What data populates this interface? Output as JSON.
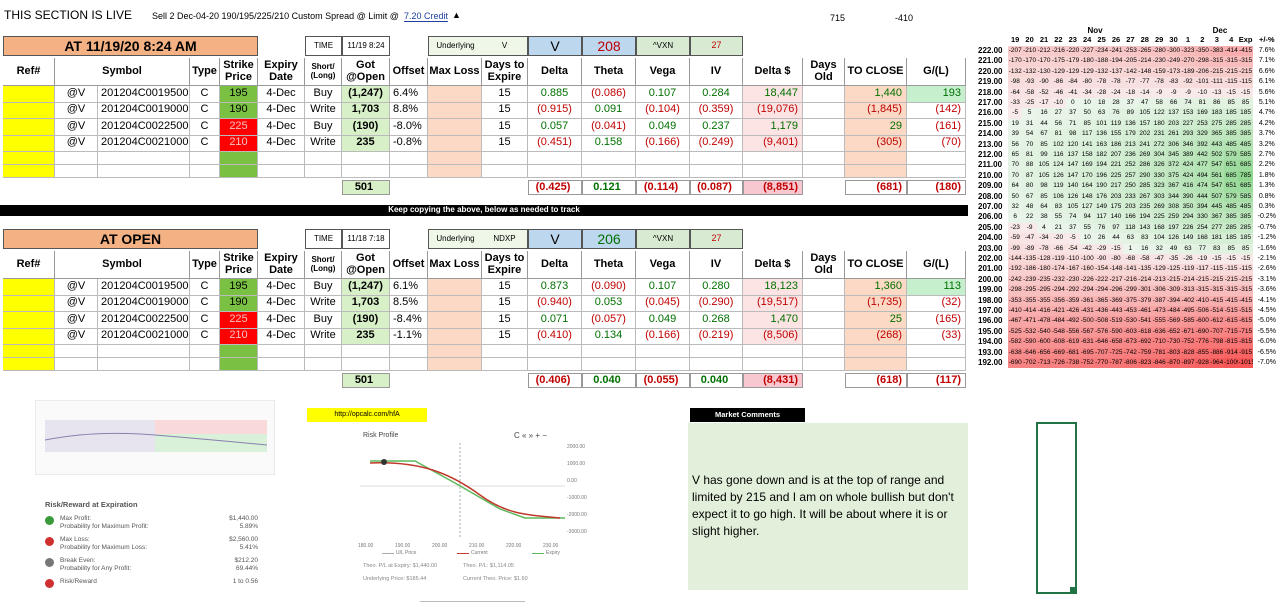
{
  "header": {
    "status": "THIS SECTION IS LIVE",
    "order": "Sell 2 Dec-04-20 190/195/225/210 Custom Spread @ Limit @",
    "credit": "7.20 Credit",
    "value_a": "715",
    "value_b": "-410"
  },
  "banner": "Keep copying the above,  below as needed to track",
  "columns": [
    "Ref#",
    "Symbol",
    "Type",
    "Strike Price",
    "Expiry Date",
    "Short/ (Long)",
    "Got @Open",
    "Offset",
    "Max Loss",
    "Days to Expire",
    "Delta",
    "Theta",
    "Vega",
    "IV",
    "Delta $",
    "Days Old",
    "TO CLOSE",
    "G/(L)"
  ],
  "sections": [
    {
      "title": "AT 11/19/20 8:24 AM",
      "time_label": "TIME",
      "time": "11/19 8:24",
      "underlying_label": "Underlying",
      "underlying": "V",
      "ticker": "V",
      "price": "208",
      "vxn_label": "^VXN",
      "vxn": "27",
      "rows": [
        [
          null,
          "@V",
          "201204C00195000",
          "C",
          "195",
          "4-Dec",
          "Buy",
          "(1,247)",
          "6.4%",
          null,
          "15",
          "0.885",
          "(0.086)",
          "0.107",
          "0.284",
          "18,447",
          null,
          "1,440",
          "193"
        ],
        [
          null,
          "@V",
          "201204C00190000",
          "C",
          "190",
          "4-Dec",
          "Write",
          "1,703",
          "8.8%",
          null,
          "15",
          "(0.915)",
          "0.091",
          "(0.104)",
          "(0.359)",
          "(19,076)",
          null,
          "(1,845)",
          "(142)"
        ],
        [
          null,
          "@V",
          "201204C00225000",
          "C",
          "225",
          "4-Dec",
          "Buy",
          "(190)",
          "-8.0%",
          null,
          "15",
          "0.057",
          "(0.041)",
          "0.049",
          "0.237",
          "1,179",
          null,
          "29",
          "(161)"
        ],
        [
          null,
          "@V",
          "201204C00210000",
          "C",
          "210",
          "4-Dec",
          "Write",
          "235",
          "-0.8%",
          null,
          "15",
          "(0.451)",
          "0.158",
          "(0.166)",
          "(0.249)",
          "(9,401)",
          null,
          "(305)",
          "(70)"
        ]
      ],
      "totals": [
        null,
        null,
        null,
        null,
        null,
        null,
        null,
        "501",
        null,
        null,
        null,
        "(0.425)",
        "0.121",
        "(0.114)",
        "(0.087)",
        "(8,851)",
        null,
        "(681)",
        "(180)"
      ]
    },
    {
      "title": "AT OPEN",
      "time_label": "TIME",
      "time": "11/18 7:18",
      "underlying_label": "Underlying",
      "underlying": "NDXP",
      "ticker": "V",
      "price": "206",
      "vxn_label": "^VXN",
      "vxn": "27",
      "rows": [
        [
          null,
          "@V",
          "201204C00195000",
          "C",
          "195",
          "4-Dec",
          "Buy",
          "(1,247)",
          "6.1%",
          null,
          "15",
          "0.873",
          "(0.090)",
          "0.107",
          "0.280",
          "18,123",
          null,
          "1,360",
          "113"
        ],
        [
          null,
          "@V",
          "201204C00190000",
          "C",
          "190",
          "4-Dec",
          "Write",
          "1,703",
          "8.5%",
          null,
          "15",
          "(0.940)",
          "0.053",
          "(0.045)",
          "(0.290)",
          "(19,517)",
          null,
          "(1,735)",
          "(32)"
        ],
        [
          null,
          "@V",
          "201204C00225000",
          "C",
          "225",
          "4-Dec",
          "Buy",
          "(190)",
          "-8.4%",
          null,
          "15",
          "0.071",
          "(0.057)",
          "0.049",
          "0.268",
          "1,470",
          null,
          "25",
          "(165)"
        ],
        [
          null,
          "@V",
          "201204C00210000",
          "C",
          "210",
          "4-Dec",
          "Write",
          "235",
          "-1.1%",
          null,
          "15",
          "(0.410)",
          "0.134",
          "(0.166)",
          "(0.219)",
          "(8,506)",
          null,
          "(268)",
          "(33)"
        ]
      ],
      "totals": [
        null,
        null,
        null,
        null,
        null,
        null,
        null,
        "501",
        null,
        null,
        null,
        "(0.406)",
        "0.040",
        "(0.055)",
        "0.040",
        "(8,431)",
        null,
        "(618)",
        "(117)"
      ]
    }
  ],
  "strike_fills": [
    "#7ac143",
    "#7ac143",
    "#ff0000",
    "#ff0000"
  ],
  "heatmap": {
    "months": [
      "Nov",
      "Dec"
    ],
    "days": [
      "19",
      "20",
      "21",
      "22",
      "23",
      "24",
      "25",
      "26",
      "27",
      "28",
      "29",
      "30",
      "1",
      "2",
      "3",
      "4",
      "Exp"
    ],
    "pct_label": "+/-%",
    "rows": [
      {
        "price": "222.00",
        "values": [
          -207,
          -210,
          -212,
          -216,
          -220,
          -227,
          -234,
          -241,
          -253,
          -265,
          -280,
          -300,
          -323,
          -350,
          -383,
          -414,
          -415
        ],
        "pct": "7.6%"
      },
      {
        "price": "221.00",
        "values": [
          -170,
          -170,
          -170,
          -175,
          -179,
          -180,
          -188,
          -194,
          -205,
          -214,
          -230,
          -249,
          -270,
          -298,
          -315,
          -315,
          -315
        ],
        "pct": "7.1%"
      },
      {
        "price": "220.00",
        "values": [
          -132,
          -132,
          -130,
          -129,
          -129,
          -129,
          -132,
          -137,
          -142,
          -148,
          -159,
          -173,
          -189,
          -206,
          -215,
          -215,
          -215
        ],
        "pct": "6.6%"
      },
      {
        "price": "219.00",
        "values": [
          -98,
          -93,
          -90,
          -86,
          -84,
          -80,
          -78,
          -78,
          -77,
          -77,
          -78,
          -83,
          -92,
          -101,
          -111,
          -115,
          -115
        ],
        "pct": "6.1%"
      },
      {
        "price": "218.00",
        "values": [
          -64,
          -58,
          -52,
          -46,
          -41,
          -34,
          -28,
          -24,
          -18,
          -14,
          -9,
          -9,
          -9,
          -10,
          -13,
          -15,
          -15
        ],
        "pct": "5.6%"
      },
      {
        "price": "217.00",
        "values": [
          -33,
          -25,
          -17,
          -10,
          0,
          10,
          18,
          28,
          37,
          47,
          58,
          66,
          74,
          81,
          86,
          85,
          85
        ],
        "pct": "5.1%"
      },
      {
        "price": "216.00",
        "values": [
          -5,
          5,
          16,
          27,
          37,
          50,
          63,
          76,
          89,
          105,
          122,
          137,
          153,
          169,
          183,
          185,
          185
        ],
        "pct": "4.7%"
      },
      {
        "price": "215.00",
        "values": [
          19,
          31,
          44,
          56,
          71,
          85,
          101,
          119,
          136,
          157,
          180,
          203,
          227,
          253,
          275,
          285,
          285
        ],
        "pct": "4.2%"
      },
      {
        "price": "214.00",
        "values": [
          39,
          54,
          67,
          81,
          98,
          117,
          136,
          155,
          179,
          202,
          231,
          261,
          293,
          329,
          365,
          385,
          385
        ],
        "pct": "3.7%"
      },
      {
        "price": "213.00",
        "values": [
          56,
          70,
          85,
          102,
          120,
          141,
          163,
          186,
          213,
          241,
          272,
          306,
          346,
          392,
          443,
          485,
          485
        ],
        "pct": "3.2%"
      },
      {
        "price": "212.00",
        "values": [
          65,
          81,
          99,
          116,
          137,
          158,
          182,
          207,
          236,
          269,
          304,
          345,
          389,
          442,
          502,
          579,
          585
        ],
        "pct": "2.7%"
      },
      {
        "price": "211.00",
        "values": [
          70,
          88,
          105,
          124,
          147,
          169,
          194,
          221,
          252,
          286,
          326,
          372,
          424,
          477,
          547,
          651,
          685
        ],
        "pct": "2.2%"
      },
      {
        "price": "210.00",
        "values": [
          70,
          87,
          105,
          126,
          147,
          170,
          196,
          225,
          257,
          290,
          330,
          375,
          424,
          494,
          561,
          685,
          785
        ],
        "pct": "1.8%"
      },
      {
        "price": "209.00",
        "values": [
          64,
          80,
          98,
          119,
          140,
          164,
          190,
          217,
          250,
          285,
          323,
          367,
          416,
          474,
          547,
          651,
          685
        ],
        "pct": "1.3%"
      },
      {
        "price": "208.00",
        "values": [
          50,
          67,
          85,
          106,
          126,
          148,
          176,
          203,
          233,
          267,
          303,
          344,
          390,
          444,
          507,
          579,
          585
        ],
        "pct": "0.8%"
      },
      {
        "price": "207.00",
        "values": [
          32,
          48,
          64,
          83,
          105,
          127,
          149,
          175,
          203,
          235,
          269,
          308,
          350,
          394,
          445,
          485,
          485
        ],
        "pct": "0.3%"
      },
      {
        "price": "206.00",
        "values": [
          6,
          22,
          38,
          55,
          74,
          94,
          117,
          140,
          166,
          194,
          225,
          259,
          294,
          330,
          367,
          385,
          385
        ],
        "pct": "-0.2%"
      },
      {
        "price": "205.00",
        "values": [
          -23,
          -9,
          4,
          21,
          37,
          55,
          76,
          97,
          118,
          143,
          168,
          197,
          226,
          254,
          277,
          285,
          285
        ],
        "pct": "-0.7%"
      },
      {
        "price": "204.00",
        "values": [
          -59,
          -47,
          -34,
          -20,
          -5,
          10,
          26,
          44,
          63,
          83,
          104,
          126,
          149,
          168,
          181,
          185,
          185
        ],
        "pct": "-1.2%"
      },
      {
        "price": "203.00",
        "values": [
          -99,
          -89,
          -78,
          -66,
          -54,
          -42,
          -29,
          -15,
          1,
          16,
          32,
          49,
          63,
          77,
          83,
          85,
          85
        ],
        "pct": "-1.6%"
      },
      {
        "price": "202.00",
        "values": [
          -144,
          -135,
          -128,
          -119,
          -110,
          -100,
          -90,
          -80,
          -68,
          -58,
          -47,
          -35,
          -26,
          -19,
          -15,
          -15,
          -15
        ],
        "pct": "-2.1%"
      },
      {
        "price": "201.00",
        "values": [
          -192,
          -186,
          -180,
          -174,
          -167,
          -160,
          -154,
          -148,
          -141,
          -135,
          -129,
          -125,
          -119,
          -117,
          -115,
          -115,
          -115
        ],
        "pct": "-2.6%"
      },
      {
        "price": "200.00",
        "values": [
          -242,
          -239,
          -235,
          -232,
          -230,
          -226,
          -222,
          -217,
          -216,
          -214,
          -213,
          -215,
          -214,
          -215,
          -215,
          -215,
          -215
        ],
        "pct": "-3.1%"
      },
      {
        "price": "199.00",
        "values": [
          -298,
          -295,
          -295,
          -294,
          -292,
          -294,
          -294,
          -296,
          -299,
          -301,
          -306,
          -309,
          -313,
          -315,
          -315,
          -315,
          -315
        ],
        "pct": "-3.6%"
      },
      {
        "price": "198.00",
        "values": [
          -353,
          -355,
          -355,
          -356,
          -359,
          -361,
          -365,
          -369,
          -375,
          -379,
          -387,
          -394,
          -402,
          -410,
          -415,
          -415,
          -415
        ],
        "pct": "-4.1%"
      },
      {
        "price": "197.00",
        "values": [
          -410,
          -414,
          -416,
          -421,
          -426,
          -431,
          -436,
          -443,
          -453,
          -461,
          -473,
          -484,
          -495,
          -506,
          -514,
          -515,
          -515
        ],
        "pct": "-4.5%"
      },
      {
        "price": "196.00",
        "values": [
          -467,
          -471,
          -478,
          -484,
          -492,
          -500,
          -508,
          -519,
          -530,
          -541,
          -555,
          -569,
          -585,
          -600,
          -612,
          -615,
          -615
        ],
        "pct": "-5.0%"
      },
      {
        "price": "195.00",
        "values": [
          -525,
          -532,
          -540,
          -548,
          -556,
          -567,
          -576,
          -590,
          -603,
          -618,
          -636,
          -652,
          -671,
          -690,
          -707,
          -715,
          -715
        ],
        "pct": "-5.5%"
      },
      {
        "price": "194.00",
        "values": [
          -582,
          -590,
          -600,
          -608,
          -619,
          -631,
          -646,
          -658,
          -673,
          -692,
          -710,
          -730,
          -752,
          -776,
          -798,
          -815,
          -815
        ],
        "pct": "-6.0%"
      },
      {
        "price": "193.00",
        "values": [
          -638,
          -646,
          -656,
          -669,
          -681,
          -695,
          -707,
          -725,
          -742,
          -759,
          -781,
          -803,
          -828,
          -855,
          -886,
          -914,
          -915
        ],
        "pct": "-6.5%"
      },
      {
        "price": "192.00",
        "values": [
          -690,
          -702,
          -713,
          -726,
          -738,
          -752,
          -770,
          -787,
          -806,
          -823,
          -846,
          -870,
          -897,
          -928,
          -964,
          -1009,
          -1015
        ],
        "pct": "-7.0%"
      }
    ]
  },
  "risk_reward": {
    "title": "Risk/Reward at Expiration",
    "items": [
      {
        "label": "Max Profit:",
        "sub": "Probability for Maximum Profit:",
        "value": "$1,440.00",
        "sub_value": "5.89%",
        "color": "#3a9a3a"
      },
      {
        "label": "Max Loss:",
        "sub": "Probability for Maximum Loss:",
        "value": "$2,560.00",
        "sub_value": "5.41%",
        "color": "#d03030"
      },
      {
        "label": "Break Even:",
        "sub": "Probability for Any Profit:",
        "value": "$212.20",
        "sub_value": "69.44%",
        "color": "#777777"
      },
      {
        "label": "Risk/Reward",
        "sub": null,
        "value": "1 to 0.56",
        "sub_value": null,
        "color": "#d03030"
      }
    ]
  },
  "link": "http://opcalc.com/hfA",
  "risk_profile": {
    "title": "Risk Profile",
    "controls": "C « » + −",
    "yticks": [
      "2000.00",
      "1000.00",
      "0.00",
      "-1000.00",
      "-2000.00",
      "-3000.00"
    ],
    "xticks": [
      "180.00",
      "190.00",
      "200.00",
      "210.00",
      "220.00",
      "230.00"
    ],
    "legend": [
      "U/L Price",
      "Current",
      "Expiry"
    ],
    "notes": [
      "Theo. P/L at Expiry: $1,440.00",
      "Theo. P/L: $1,114.05",
      "Underlying Price: $185.44",
      "Current Theo. Price: $1.60"
    ]
  },
  "comments": {
    "title": "Market Comments",
    "text": "V has gone down and is at the top of range and limited by 215 and I am on whole bullish but don't expect it to go high.  It will be about where it is or slight higher."
  }
}
